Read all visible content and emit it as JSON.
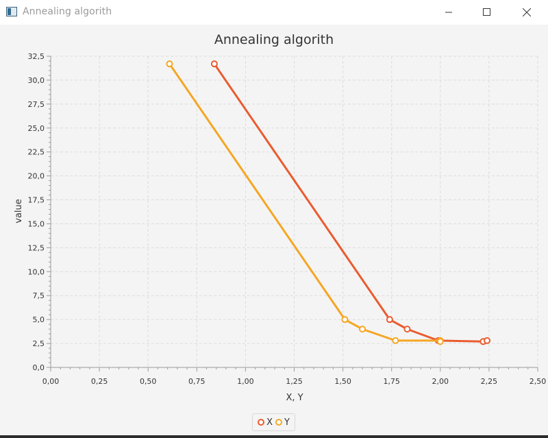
{
  "window": {
    "title": "Annealing algorith",
    "app_icon": "java-app-icon",
    "controls": [
      "minimize-icon",
      "maximize-icon",
      "close-icon"
    ]
  },
  "chart_data": {
    "type": "line",
    "title": "Annealing algorith",
    "xlabel": "X, Y",
    "ylabel": "value",
    "xlim": [
      0,
      2.5
    ],
    "ylim": [
      0,
      32.5
    ],
    "x_ticks": [
      "0,00",
      "0,25",
      "0,50",
      "0,75",
      "1,00",
      "1,25",
      "1,50",
      "1,75",
      "2,00",
      "2,25",
      "2,50"
    ],
    "y_ticks": [
      "0,0",
      "2,5",
      "5,0",
      "7,5",
      "10,0",
      "12,5",
      "15,0",
      "17,5",
      "20,0",
      "22,5",
      "25,0",
      "27,5",
      "30,0",
      "32,5"
    ],
    "grid": true,
    "legend_position": "bottom-center",
    "series": [
      {
        "name": "X",
        "color": "#ea5b2f",
        "points": [
          [
            0.84,
            31.7
          ],
          [
            1.74,
            5.0
          ],
          [
            1.83,
            4.0
          ],
          [
            1.99,
            2.8
          ],
          [
            2.22,
            2.7
          ],
          [
            2.24,
            2.8
          ]
        ]
      },
      {
        "name": "Y",
        "color": "#f5a623",
        "points": [
          [
            0.61,
            31.7
          ],
          [
            1.51,
            5.0
          ],
          [
            1.6,
            4.0
          ],
          [
            1.77,
            2.8
          ],
          [
            2.0,
            2.8
          ],
          [
            2.0,
            2.7
          ]
        ]
      }
    ]
  }
}
